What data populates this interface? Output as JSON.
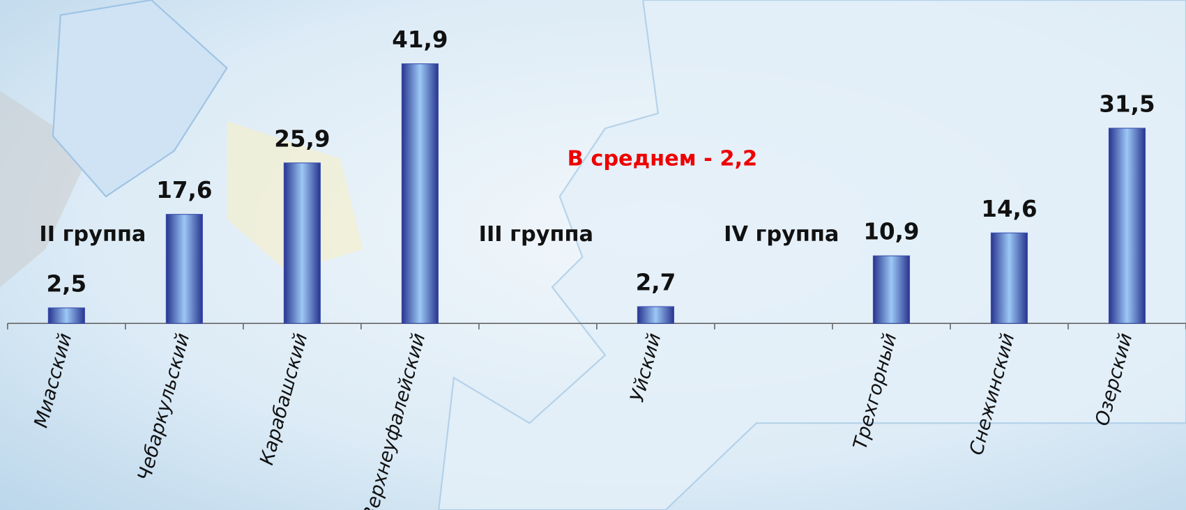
{
  "chart_data": {
    "type": "bar",
    "categories": [
      "Миасский",
      "Чебаркульский",
      "Карабашский",
      "Верхнеуфалейский",
      null,
      "Уйский",
      null,
      "Трехгорный",
      "Снежинский",
      "Озерский"
    ],
    "values": [
      2.5,
      17.6,
      25.9,
      41.9,
      null,
      2.7,
      null,
      10.9,
      14.6,
      31.5
    ],
    "value_labels": [
      "2,5",
      "17,6",
      "25,9",
      "41,9",
      null,
      "2,7",
      null,
      "10,9",
      "14,6",
      "31,5"
    ],
    "color": "#3b4fb0",
    "ylim": [
      0,
      50
    ],
    "annotations": [
      "II группа",
      "III группа",
      "IV группа",
      "В среднем - 2,2"
    ]
  }
}
